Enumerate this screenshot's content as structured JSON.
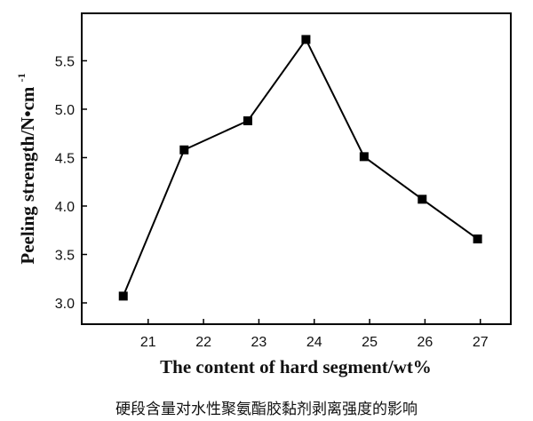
{
  "chart_data": {
    "type": "line",
    "title": "",
    "xlabel": "The content of hard segment/wt%",
    "ylabel_main": "Peeling strength/N•cm",
    "ylabel_sup": "-1",
    "x": [
      20.55,
      21.65,
      22.8,
      23.85,
      24.9,
      25.95,
      26.95
    ],
    "y": [
      3.07,
      4.58,
      4.88,
      5.72,
      4.51,
      4.07,
      3.66
    ],
    "xlim": [
      19.8,
      27.55
    ],
    "ylim": [
      2.78,
      5.99
    ],
    "xticks": [
      21,
      22,
      23,
      24,
      25,
      26,
      27
    ],
    "yticks": [
      3.0,
      3.5,
      4.0,
      4.5,
      5.0,
      5.5
    ],
    "xtick_labels": [
      "21",
      "22",
      "23",
      "24",
      "25",
      "26",
      "27"
    ],
    "ytick_labels": [
      "3.0",
      "3.5",
      "4.0",
      "4.5",
      "5.0",
      "5.5"
    ],
    "marker": "square",
    "line_color": "#000000",
    "grid": false,
    "legend": "none"
  },
  "caption": "硬段含量对水性聚氨酯胶黏剂剥离强度的影响"
}
